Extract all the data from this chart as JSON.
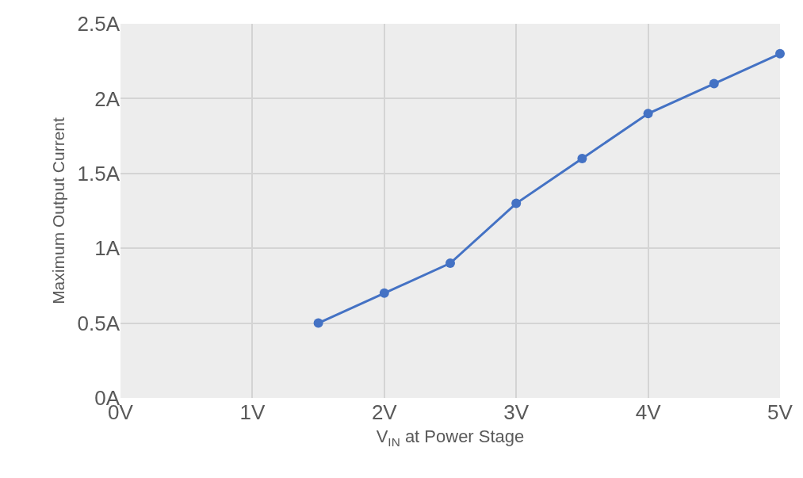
{
  "chart_data": {
    "type": "line",
    "xlabel": "V$_{IN}$ at Power Stage",
    "ylabel": "Maximum Output Current",
    "x": [
      1.5,
      2,
      2.5,
      3,
      3.5,
      4,
      4.5,
      5
    ],
    "series": [
      {
        "color": "#4472c4",
        "values": [
          0.5,
          0.7,
          0.9,
          1.3,
          1.6,
          1.9,
          2.1,
          2.3
        ]
      }
    ],
    "xlim": [
      0,
      5
    ],
    "xticks": [
      {
        "value": 0,
        "label": "0V"
      },
      {
        "value": 1,
        "label": "1V"
      },
      {
        "value": 2,
        "label": "2V"
      },
      {
        "value": 3,
        "label": "3V"
      },
      {
        "value": 4,
        "label": "4V"
      },
      {
        "value": 5,
        "label": "5V"
      }
    ],
    "ylim": [
      0,
      2.5
    ],
    "yticks": [
      {
        "value": 0,
        "label": "0A"
      },
      {
        "value": 0.5,
        "label": "0.5A"
      },
      {
        "value": 1,
        "label": "1A"
      },
      {
        "value": 1.5,
        "label": "1.5A"
      },
      {
        "value": 2,
        "label": "2A"
      },
      {
        "value": 2.5,
        "label": "2.5A"
      }
    ],
    "grid": true,
    "marker": "circle",
    "line_style": "solid"
  }
}
